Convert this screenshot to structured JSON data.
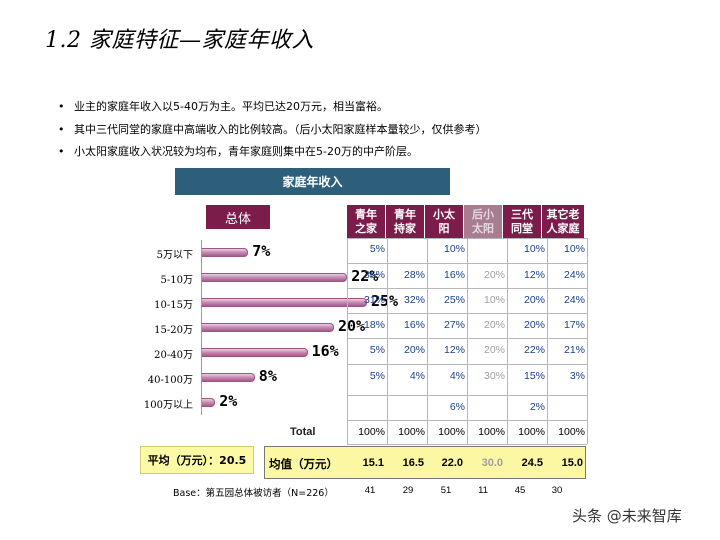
{
  "title": "1.2 家庭特征—家庭年收入",
  "bullets": [
    "业主的家庭年收入以5-40万为主。平均已达20万元，相当富裕。",
    "其中三代同堂的家庭中高端收入的比例较高。（后小太阳家庭样本量较少，仅供参考）",
    "小太阳家庭收入状况较为均布，青年家庭则集中在5-20万的中产阶层。"
  ],
  "header_bar": "家庭年收入",
  "total_label": "总体",
  "chart_data": {
    "type": "bar",
    "orientation": "horizontal",
    "categories": [
      "5万以下",
      "5-10万",
      "10-15万",
      "15-20万",
      "20-40万",
      "40-100万",
      "100万以上"
    ],
    "values": [
      7,
      22,
      25,
      20,
      16,
      8,
      2
    ],
    "value_labels": [
      "7%",
      "22%",
      "25%",
      "20%",
      "16%",
      "8%",
      "2%"
    ],
    "bar_color": "#b06f9b",
    "xlim": [
      0,
      25
    ]
  },
  "columns": [
    "青年之家",
    "青年持家",
    "小太阳",
    "后小太阳",
    "三代同堂",
    "其它老人家庭"
  ],
  "column_headers_display": [
    [
      "青年",
      "之家"
    ],
    [
      "青年",
      "持家"
    ],
    [
      "小太",
      "阳"
    ],
    [
      "后小",
      "太阳"
    ],
    [
      "三代",
      "同堂"
    ],
    [
      "其它老",
      "人家庭"
    ]
  ],
  "table_rows": [
    [
      "5%",
      "",
      "10%",
      "",
      "10%",
      "10%"
    ],
    [
      "36%",
      "28%",
      "16%",
      "20%",
      "12%",
      "24%"
    ],
    [
      "31%",
      "32%",
      "25%",
      "10%",
      "20%",
      "24%"
    ],
    [
      "18%",
      "16%",
      "27%",
      "20%",
      "20%",
      "17%"
    ],
    [
      "5%",
      "20%",
      "12%",
      "20%",
      "22%",
      "21%"
    ],
    [
      "5%",
      "4%",
      "4%",
      "30%",
      "15%",
      "3%"
    ],
    [
      "",
      "",
      "6%",
      "",
      "2%",
      ""
    ]
  ],
  "total_row_label": "Total",
  "total_row": [
    "100%",
    "100%",
    "100%",
    "100%",
    "100%",
    "100%"
  ],
  "avg_left_label": "平均（万元）：20.5",
  "avg_right_label": "均值（万元）",
  "avg_values": [
    "15.1",
    "16.5",
    "22.0",
    "30.0",
    "24.5",
    "15.0"
  ],
  "base_label": "Base：第五园总体被访者（N=226）",
  "base_values": [
    "41",
    "29",
    "51",
    "11",
    "45",
    "30"
  ],
  "watermark": "头条 @未来智库",
  "colors": {
    "header_bar": "#2e5f7a",
    "column_header": "#7b1c4b",
    "cell_text": "#1a3f8a",
    "highlight": "#fbf7a2",
    "dim_text": "#a0a0a0"
  }
}
